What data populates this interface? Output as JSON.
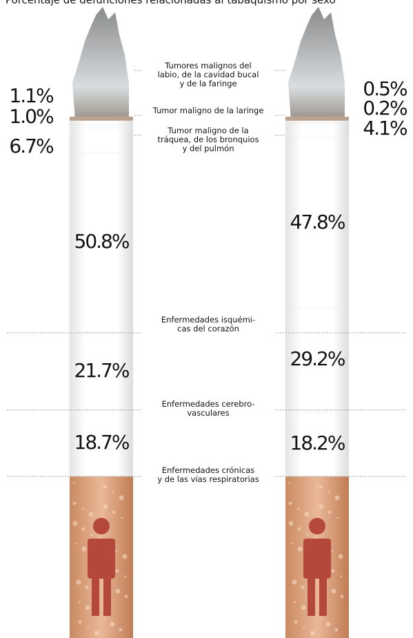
{
  "chart_data": {
    "type": "stacked_bar",
    "title": "Porcentaje de defunciones relacionadas al tabaquismo por sexo",
    "categories": [
      null,
      null
    ],
    "series": [
      {
        "name": "Tumores malignos del\nlabio, de la cavidad bucal\ny de la faringe",
        "values": [
          1.1,
          0.5
        ],
        "value_labels": [
          "1.1%",
          "0.5%"
        ]
      },
      {
        "name": "Tumor maligno de la laringe",
        "values": [
          1.0,
          0.2
        ],
        "value_labels": [
          "1.0%",
          "0.2%"
        ]
      },
      {
        "name": "Tumor maligno de la\ntráquea, de los bronquios\ny del pulmón",
        "values": [
          6.7,
          4.1
        ],
        "value_labels": [
          "6.7%",
          "4.1%"
        ]
      },
      {
        "name": "Enfermedades isquémi-\ncas del corazón",
        "values": [
          50.8,
          47.8
        ],
        "value_labels": [
          "50.8%",
          "47.8%"
        ]
      },
      {
        "name": "Enfermedades cerebro-\nvasculares",
        "values": [
          21.7,
          29.2
        ],
        "value_labels": [
          "21.7%",
          "29.2%"
        ]
      },
      {
        "name": "Enfermedades crónicas\ny de las vías respiratorias",
        "values": [
          18.7,
          18.2
        ],
        "value_labels": [
          "18.7%",
          "18.2%"
        ]
      }
    ]
  }
}
